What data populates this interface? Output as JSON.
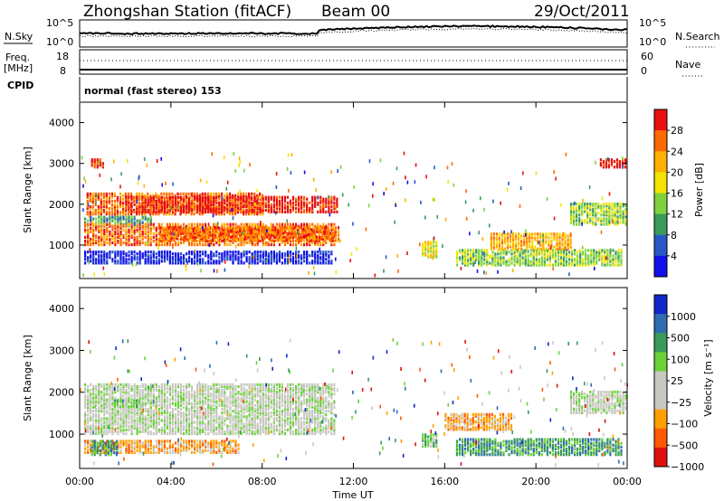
{
  "header": {
    "station_title": "Zhongshan Station (fitACF)",
    "beam": "Beam 00",
    "date": "29/Oct/2011"
  },
  "top_panel": {
    "left_label": "N.Sky",
    "right_label": "N.Search",
    "left_ticks": [
      "10^5",
      "10^0"
    ],
    "right_ticks": [
      "10^5",
      "10^0"
    ]
  },
  "freq_panel": {
    "left_label_line1": "Freq.",
    "left_label_line2": "[MHz]",
    "right_label": "Nave",
    "left_ticks": [
      "18",
      "8"
    ],
    "right_ticks": [
      "60",
      "0"
    ]
  },
  "cpid": {
    "label": "CPID",
    "mode": "normal (fast stereo) 153"
  },
  "chart_data": [
    {
      "type": "heatmap",
      "name": "power",
      "ylabel": "Slant Range [km]",
      "ylim": [
        180,
        4500
      ],
      "xlim_hours": [
        0,
        24
      ],
      "y_ticks": [
        "4000",
        "3000",
        "2000",
        "1000"
      ],
      "colorbar_label": "Power [dB]",
      "colorbar_ticks": [
        "28",
        "24",
        "20",
        "16",
        "12",
        "8",
        "4"
      ],
      "colorbar_colors": [
        "#e81010",
        "#ff6a00",
        "#ffb000",
        "#f2e400",
        "#7fd23c",
        "#3a9a5a",
        "#2858c8",
        "#1010e8"
      ],
      "bands": [
        {
          "t0": 0.2,
          "t1": 11.0,
          "r0": 550,
          "r1": 850,
          "level": 7
        },
        {
          "t0": 0.2,
          "t1": 3.2,
          "r0": 1450,
          "r1": 1700,
          "level": 5
        },
        {
          "t0": 0.2,
          "t1": 11.2,
          "r0": 1000,
          "r1": 1500,
          "level": 1
        },
        {
          "t0": 0.3,
          "t1": 8.0,
          "r0": 1750,
          "r1": 2250,
          "level": 1
        },
        {
          "t0": 2.0,
          "t1": 11.3,
          "r0": 1800,
          "r1": 2200,
          "level": 0
        },
        {
          "t0": 3.5,
          "t1": 11.3,
          "r0": 1100,
          "r1": 1450,
          "level": 1
        },
        {
          "t0": 0.5,
          "t1": 1.0,
          "r0": 2900,
          "r1": 3100,
          "level": 0
        },
        {
          "t0": 15.0,
          "t1": 15.7,
          "r0": 700,
          "r1": 1100,
          "level": 3
        },
        {
          "t0": 16.5,
          "t1": 23.8,
          "r0": 500,
          "r1": 900,
          "level": 4
        },
        {
          "t0": 18.0,
          "t1": 21.5,
          "r0": 900,
          "r1": 1300,
          "level": 2
        },
        {
          "t0": 21.5,
          "t1": 24.0,
          "r0": 1500,
          "r1": 2000,
          "level": 4
        },
        {
          "t0": 22.8,
          "t1": 24.0,
          "r0": 2900,
          "r1": 3100,
          "level": 0
        }
      ]
    },
    {
      "type": "heatmap",
      "name": "velocity",
      "ylabel": "Slant Range [km]",
      "ylim": [
        180,
        4500
      ],
      "xlim_hours": [
        0,
        24
      ],
      "y_ticks": [
        "4000",
        "3000",
        "2000",
        "1000"
      ],
      "x_ticks": [
        "00:00",
        "04:00",
        "08:00",
        "12:00",
        "16:00",
        "20:00",
        "00:00"
      ],
      "xlabel": "Time UT",
      "colorbar_label": "Velocity [m s⁻¹]",
      "colorbar_ticks": [
        "1000",
        "500",
        "100",
        "25",
        "−25",
        "−100",
        "−500",
        "−1000"
      ],
      "colorbar_colors": [
        "#1028c8",
        "#2f6db0",
        "#3a9a5a",
        "#6ad238",
        "#c8c8c0",
        "#c8c8c0",
        "#ffa000",
        "#ff5a00",
        "#e01010"
      ],
      "bands": [
        {
          "t0": 0.2,
          "t1": 11.2,
          "r0": 1000,
          "r1": 2200,
          "level": 4
        },
        {
          "t0": 0.2,
          "t1": 7.0,
          "r0": 550,
          "r1": 850,
          "level": 6
        },
        {
          "t0": 0.5,
          "t1": 1.6,
          "r0": 500,
          "r1": 850,
          "level": 2
        },
        {
          "t0": 1.5,
          "t1": 2.8,
          "r0": 1650,
          "r1": 1800,
          "level": 3
        },
        {
          "t0": 16.5,
          "t1": 23.8,
          "r0": 500,
          "r1": 900,
          "level": 2
        },
        {
          "t0": 16.0,
          "t1": 19.0,
          "r0": 1100,
          "r1": 1500,
          "level": 6
        },
        {
          "t0": 21.5,
          "t1": 24.0,
          "r0": 1500,
          "r1": 2000,
          "level": 4
        },
        {
          "t0": 15.0,
          "t1": 15.7,
          "r0": 700,
          "r1": 1000,
          "level": 3
        }
      ]
    }
  ]
}
